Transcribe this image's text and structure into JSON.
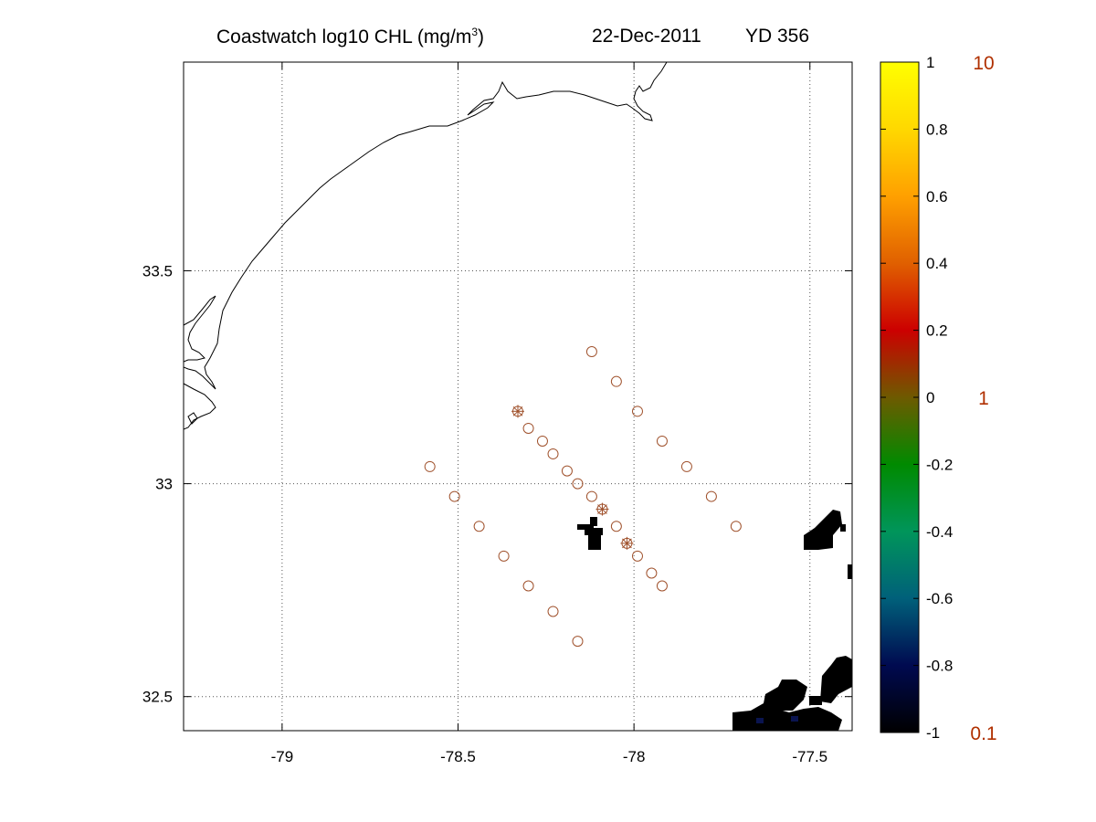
{
  "title": {
    "main_prefix": "Coastwatch  log10  CHL (mg/m",
    "main_sup": "3",
    "main_suffix": ")",
    "date": "22-Dec-2011",
    "yearday": "YD 356"
  },
  "map": {
    "lon_range": [
      -79.28,
      -77.38
    ],
    "lat_range": [
      32.42,
      33.99
    ],
    "x_ticks": [
      {
        "value": -79,
        "label": "-79"
      },
      {
        "value": -78.5,
        "label": "-78.5"
      },
      {
        "value": -78,
        "label": "-78"
      },
      {
        "value": -77.5,
        "label": "-77.5"
      }
    ],
    "y_ticks": [
      {
        "value": 33.5,
        "label": "33.5"
      },
      {
        "value": 33,
        "label": "33"
      },
      {
        "value": 32.5,
        "label": "32.5"
      }
    ],
    "grid": "dotted",
    "colors": {
      "station": "#a0522d",
      "coastline": "#000000",
      "land_pixels": "#000000"
    }
  },
  "chart_data": {
    "type": "scatter",
    "xlabel": "",
    "ylabel": "",
    "xlim": [
      -79.28,
      -77.38
    ],
    "ylim": [
      32.42,
      33.99
    ],
    "series": [
      {
        "marker": "circle",
        "points": [
          {
            "lon": -78.12,
            "lat": 33.31
          },
          {
            "lon": -78.05,
            "lat": 33.24
          },
          {
            "lon": -77.99,
            "lat": 33.17
          },
          {
            "lon": -77.92,
            "lat": 33.1
          },
          {
            "lon": -77.85,
            "lat": 33.04
          },
          {
            "lon": -77.78,
            "lat": 32.97
          },
          {
            "lon": -77.71,
            "lat": 32.9
          },
          {
            "lon": -78.3,
            "lat": 33.13
          },
          {
            "lon": -78.26,
            "lat": 33.1
          },
          {
            "lon": -78.23,
            "lat": 33.07
          },
          {
            "lon": -78.19,
            "lat": 33.03
          },
          {
            "lon": -78.16,
            "lat": 33.0
          },
          {
            "lon": -78.12,
            "lat": 32.97
          },
          {
            "lon": -78.05,
            "lat": 32.9
          },
          {
            "lon": -77.99,
            "lat": 32.83
          },
          {
            "lon": -77.95,
            "lat": 32.79
          },
          {
            "lon": -77.92,
            "lat": 32.76
          },
          {
            "lon": -78.58,
            "lat": 33.04
          },
          {
            "lon": -78.51,
            "lat": 32.97
          },
          {
            "lon": -78.44,
            "lat": 32.9
          },
          {
            "lon": -78.37,
            "lat": 32.83
          },
          {
            "lon": -78.3,
            "lat": 32.76
          },
          {
            "lon": -78.23,
            "lat": 32.7
          },
          {
            "lon": -78.16,
            "lat": 32.63
          }
        ]
      },
      {
        "marker": "star-circle",
        "points": [
          {
            "lon": -78.33,
            "lat": 33.17
          },
          {
            "lon": -78.09,
            "lat": 32.94
          },
          {
            "lon": -78.02,
            "lat": 32.86
          }
        ]
      }
    ]
  },
  "colorbar": {
    "range": [
      -1,
      1
    ],
    "ticks": [
      {
        "value": 1,
        "label": "1"
      },
      {
        "value": 0.8,
        "label": "0.8"
      },
      {
        "value": 0.6,
        "label": "0.6"
      },
      {
        "value": 0.4,
        "label": "0.4"
      },
      {
        "value": 0.2,
        "label": "0.2"
      },
      {
        "value": 0,
        "label": "0"
      },
      {
        "value": -0.2,
        "label": "-0.2"
      },
      {
        "value": -0.4,
        "label": "-0.4"
      },
      {
        "value": -0.6,
        "label": "-0.6"
      },
      {
        "value": -0.8,
        "label": "-0.8"
      },
      {
        "value": -1,
        "label": "-1"
      }
    ],
    "log_labels": [
      {
        "value": 1,
        "label": "10"
      },
      {
        "value": 0,
        "label": "1"
      },
      {
        "value": -1,
        "label": "0.1"
      }
    ],
    "colormap": [
      "#000000",
      "#000a50",
      "#00607a",
      "#00955a",
      "#008a00",
      "#6e5a00",
      "#cc0000",
      "#e06000",
      "#ffa000",
      "#ffd800",
      "#ffff00"
    ]
  }
}
